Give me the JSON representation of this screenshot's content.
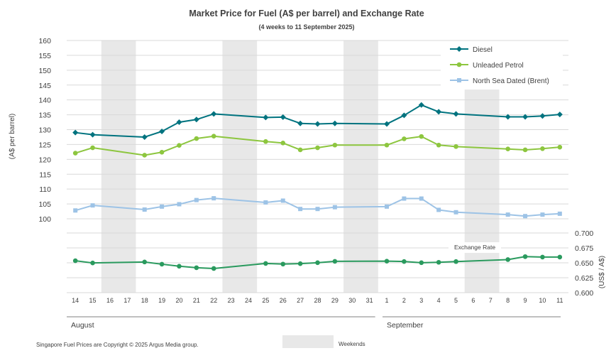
{
  "chart_data": {
    "type": "line",
    "title": "Market Price for Fuel (A$ per barrel) and Exchange Rate",
    "subtitle": "(4 weeks to 11 September 2025)",
    "ylabel": "(A$ per barrel)",
    "y2label": "(US$ / A$)",
    "ylim": [
      100,
      160
    ],
    "yticks": [
      "100",
      "105",
      "110",
      "115",
      "120",
      "125",
      "130",
      "135",
      "140",
      "145",
      "150",
      "155",
      "160"
    ],
    "y2lim": [
      0.6,
      0.7
    ],
    "y2ticks": [
      "0.600",
      "0.625",
      "0.650",
      "0.675",
      "0.700"
    ],
    "x": [
      "14",
      "15",
      "16",
      "17",
      "18",
      "19",
      "20",
      "21",
      "22",
      "23",
      "24",
      "25",
      "26",
      "27",
      "28",
      "29",
      "30",
      "31",
      "1",
      "2",
      "3",
      "4",
      "5",
      "6",
      "7",
      "8",
      "9",
      "10",
      "11"
    ],
    "months": [
      {
        "label": "August",
        "from": 0,
        "to": 17
      },
      {
        "label": "September",
        "from": 18,
        "to": 28
      }
    ],
    "weekends": [
      [
        2,
        3
      ],
      [
        9,
        10
      ],
      [
        16,
        17
      ],
      [
        23,
        24
      ]
    ],
    "legend_labels": [
      "Diesel",
      "Unleaded Petrol",
      "North Sea Dated (Brent)"
    ],
    "series": [
      {
        "name": "Diesel",
        "axis": "left",
        "color": "#00737f",
        "marker": "diamond",
        "values": [
          129.0,
          128.3,
          null,
          null,
          127.5,
          129.4,
          132.5,
          133.4,
          135.3,
          null,
          null,
          134.1,
          134.2,
          132.1,
          131.9,
          132.1,
          null,
          null,
          131.9,
          134.8,
          138.3,
          136.0,
          135.3,
          null,
          null,
          134.3,
          134.3,
          134.6,
          135.1
        ]
      },
      {
        "name": "Unleaded Petrol",
        "axis": "left",
        "color": "#8dc63f",
        "marker": "circle",
        "values": [
          122.1,
          123.9,
          null,
          null,
          121.4,
          122.4,
          124.7,
          127.0,
          127.8,
          null,
          null,
          126.0,
          125.5,
          123.2,
          123.9,
          124.8,
          null,
          null,
          124.8,
          126.9,
          127.7,
          124.8,
          124.3,
          null,
          null,
          123.5,
          123.2,
          123.6,
          124.1
        ]
      },
      {
        "name": "North Sea Dated (Brent)",
        "axis": "left",
        "color": "#9dc3e6",
        "marker": "square",
        "values": [
          102.8,
          104.5,
          null,
          null,
          103.1,
          104.1,
          104.9,
          106.3,
          106.9,
          null,
          null,
          105.5,
          106.1,
          103.3,
          103.3,
          103.9,
          null,
          null,
          104.1,
          106.8,
          106.8,
          103.0,
          102.2,
          null,
          null,
          101.4,
          100.9,
          101.4,
          101.7
        ]
      },
      {
        "name": "Exchange Rate",
        "axis": "right",
        "color": "#2a9a5e",
        "marker": "circle",
        "values": [
          0.6535,
          0.6498,
          null,
          null,
          0.6514,
          0.6477,
          0.6443,
          0.6418,
          0.6405,
          null,
          null,
          0.6489,
          0.6479,
          0.6486,
          0.6502,
          0.6525,
          null,
          null,
          0.6528,
          0.6522,
          0.6502,
          0.6509,
          0.6521,
          null,
          null,
          0.6554,
          0.6604,
          0.6596,
          0.6596
        ]
      }
    ],
    "series_label": "Exchange Rate",
    "footer": "Singapore Fuel Prices are Copyright © 2025 Argus Media group.",
    "weekend_legend": "Weekends"
  }
}
